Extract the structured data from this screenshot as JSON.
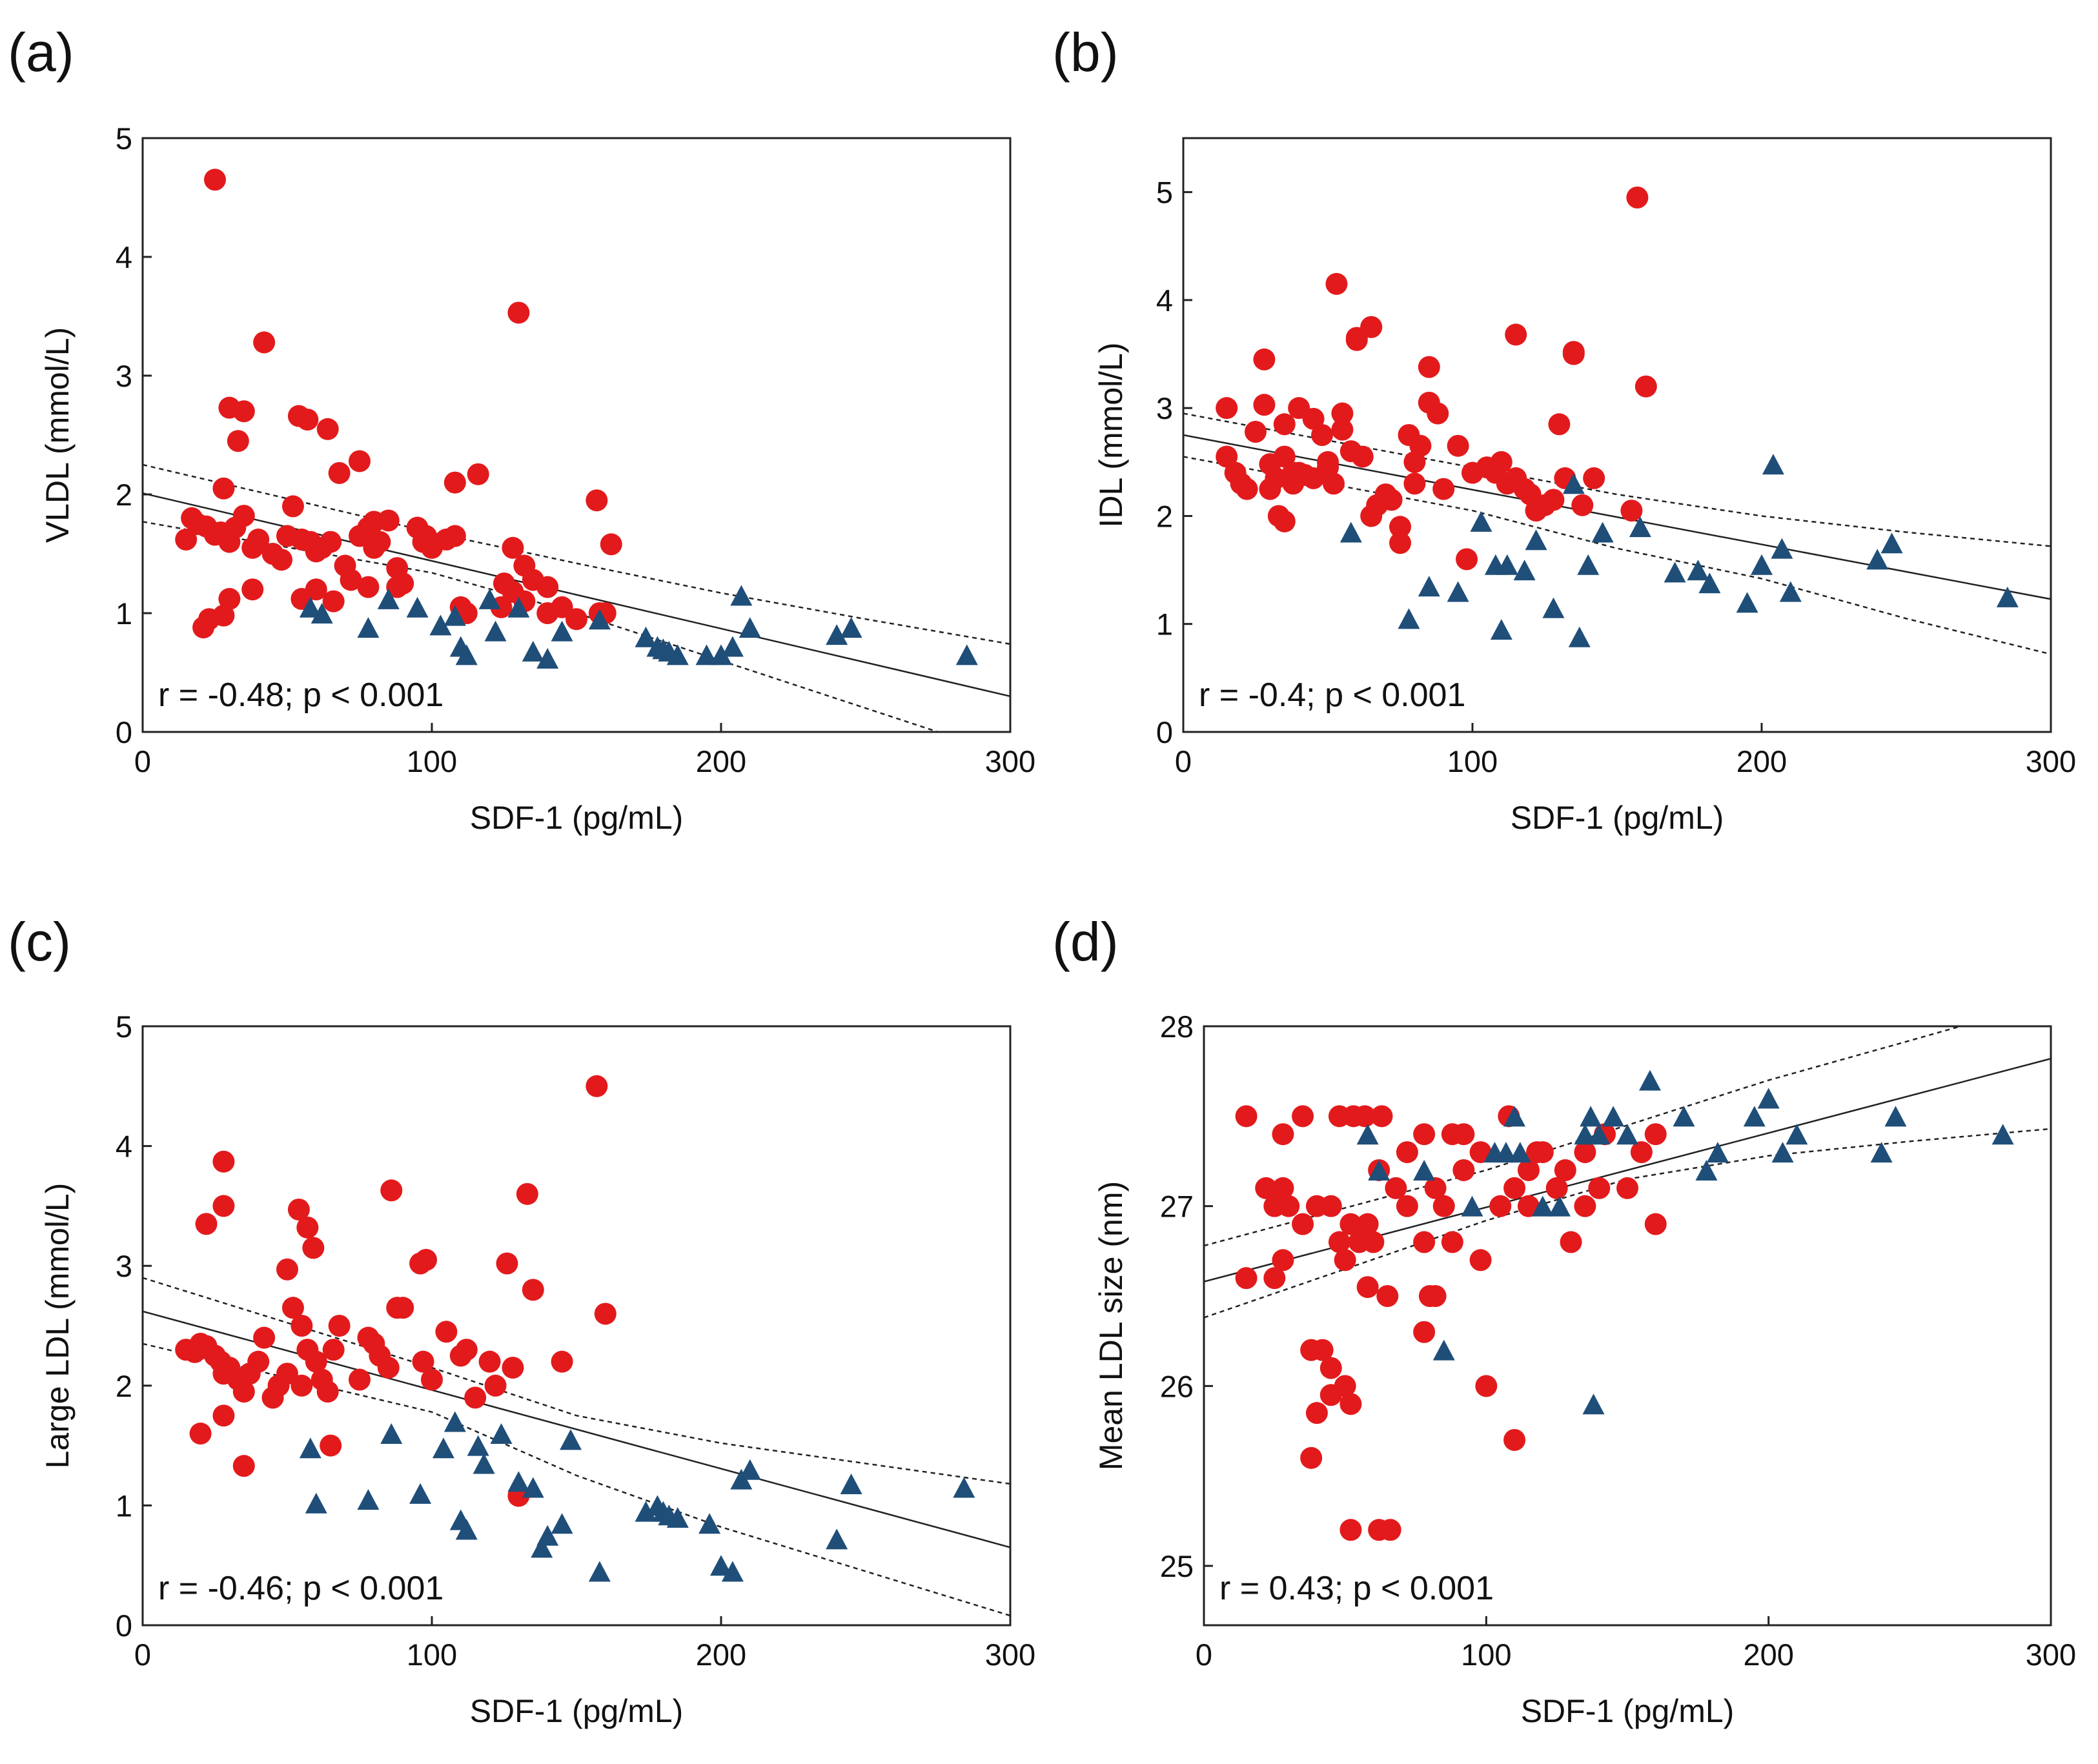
{
  "figure": {
    "marker_colors": {
      "red_circle": "#e31a1c",
      "blue_triangle": "#1f4e79"
    },
    "panels": [
      "a",
      "b",
      "c",
      "d"
    ]
  },
  "chart_data": [
    {
      "panel": "(a)",
      "type": "scatter",
      "xlabel": "SDF-1 (pg/mL)",
      "ylabel": "VLDL (mmol/L)",
      "xlim": [
        0,
        300
      ],
      "ylim": [
        0,
        5
      ],
      "xticks": [
        "0",
        "100",
        "200",
        "300"
      ],
      "yticks": [
        "0",
        "1",
        "2",
        "3",
        "4",
        "5"
      ],
      "annotation": "r = -0.48; p < 0.001",
      "fit": {
        "x": [
          0,
          300
        ],
        "y": [
          2.01,
          0.3
        ]
      },
      "ci_upper": {
        "x": [
          0,
          100,
          150,
          200,
          250,
          300
        ],
        "y": [
          2.25,
          1.68,
          1.42,
          1.17,
          0.95,
          0.74
        ]
      },
      "ci_lower": {
        "x": [
          0,
          100,
          150,
          200,
          250,
          275
        ],
        "y": [
          1.77,
          1.34,
          1.0,
          0.6,
          0.2,
          0.0
        ]
      },
      "series": [
        {
          "marker": "circle",
          "color": "#e31a1c",
          "x": [
            25,
            42,
            130,
            30,
            35,
            33,
            28,
            54,
            57,
            64,
            68,
            75,
            80,
            98,
            108,
            116,
            157,
            162,
            15,
            17,
            19,
            22,
            25,
            27,
            30,
            32,
            35,
            38,
            40,
            45,
            48,
            50,
            52,
            55,
            58,
            60,
            62,
            65,
            70,
            72,
            75,
            78,
            80,
            82,
            85,
            88,
            90,
            95,
            97,
            100,
            105,
            108,
            110,
            112,
            125,
            128,
            132,
            135,
            140,
            145,
            150,
            158,
            160,
            21,
            23,
            28,
            30,
            38,
            55,
            60,
            66,
            78,
            88,
            124,
            128,
            132,
            140
          ],
          "y": [
            4.65,
            3.28,
            3.53,
            2.73,
            2.7,
            2.45,
            2.05,
            2.66,
            2.63,
            2.55,
            2.18,
            2.28,
            1.77,
            1.65,
            2.1,
            2.17,
            1.95,
            1.58,
            1.62,
            1.8,
            1.75,
            1.73,
            1.66,
            1.68,
            1.6,
            1.72,
            1.82,
            1.55,
            1.62,
            1.5,
            1.45,
            1.65,
            1.9,
            1.62,
            1.6,
            1.52,
            1.55,
            1.6,
            1.4,
            1.28,
            1.65,
            1.72,
            1.55,
            1.6,
            1.78,
            1.38,
            1.25,
            1.72,
            1.6,
            1.55,
            1.62,
            1.65,
            1.05,
            1.0,
            1.25,
            1.55,
            1.4,
            1.28,
            1.22,
            1.05,
            0.95,
            1.0,
            1.0,
            0.88,
            0.95,
            0.98,
            1.12,
            1.2,
            1.12,
            1.2,
            1.1,
            1.22,
            1.22,
            1.05,
            1.18,
            1.1,
            1.0
          ]
        },
        {
          "marker": "triangle",
          "color": "#1f4e79",
          "x": [
            58,
            62,
            78,
            85,
            95,
            103,
            108,
            110,
            112,
            120,
            122,
            130,
            135,
            140,
            145,
            158,
            174,
            178,
            180,
            182,
            185,
            195,
            200,
            204,
            207,
            210,
            240,
            245,
            285
          ],
          "y": [
            1.05,
            1.0,
            0.88,
            1.12,
            1.05,
            0.9,
            0.98,
            0.72,
            0.65,
            1.12,
            0.85,
            1.05,
            0.68,
            0.62,
            0.85,
            0.95,
            0.8,
            0.72,
            0.7,
            0.68,
            0.65,
            0.65,
            0.65,
            0.72,
            1.15,
            0.88,
            0.82,
            0.88,
            0.65
          ]
        }
      ]
    },
    {
      "panel": "(b)",
      "type": "scatter",
      "xlabel": "SDF-1 (pg/mL)",
      "ylabel": "IDL (mmol/L)",
      "xlim": [
        0,
        300
      ],
      "ylim": [
        0,
        5.5
      ],
      "xticks": [
        "0",
        "100",
        "200",
        "300"
      ],
      "yticks": [
        "0",
        "1",
        "2",
        "3",
        "4",
        "5"
      ],
      "annotation": "r = -0.4; p < 0.001",
      "fit": {
        "x": [
          0,
          300
        ],
        "y": [
          2.75,
          1.23
        ]
      },
      "ci_upper": {
        "x": [
          0,
          100,
          150,
          200,
          250,
          300
        ],
        "y": [
          2.95,
          2.45,
          2.2,
          2.0,
          1.85,
          1.72
        ]
      },
      "ci_lower": {
        "x": [
          0,
          100,
          150,
          200,
          250,
          300
        ],
        "y": [
          2.55,
          2.05,
          1.7,
          1.42,
          1.05,
          0.72
        ]
      },
      "series": [
        {
          "marker": "circle",
          "color": "#e31a1c",
          "x": [
            15,
            15,
            20,
            25,
            28,
            28,
            30,
            32,
            35,
            35,
            38,
            40,
            42,
            45,
            48,
            50,
            52,
            55,
            55,
            58,
            60,
            62,
            65,
            67,
            70,
            72,
            75,
            78,
            80,
            82,
            85,
            88,
            90,
            95,
            98,
            100,
            105,
            108,
            110,
            112,
            115,
            118,
            120,
            122,
            125,
            128,
            130,
            132,
            135,
            138,
            142,
            155,
            157,
            160,
            53,
            60,
            65,
            85,
            115,
            135,
            18,
            22,
            30,
            33,
            35,
            38,
            40,
            45,
            50,
            65,
            75,
            80
          ],
          "y": [
            3.0,
            2.55,
            2.3,
            2.78,
            3.45,
            3.03,
            2.48,
            2.35,
            2.85,
            2.55,
            2.4,
            3.0,
            2.38,
            2.9,
            2.75,
            2.45,
            2.3,
            2.95,
            2.8,
            2.6,
            3.63,
            2.55,
            3.75,
            2.1,
            2.2,
            2.15,
            1.75,
            2.75,
            2.5,
            2.65,
            3.05,
            2.95,
            2.25,
            2.65,
            1.6,
            2.4,
            2.45,
            2.4,
            2.5,
            2.3,
            2.35,
            2.25,
            2.2,
            2.05,
            2.1,
            2.15,
            2.85,
            2.35,
            3.5,
            2.1,
            2.35,
            2.05,
            4.95,
            3.2,
            4.15,
            3.65,
            3.75,
            3.38,
            3.68,
            3.52,
            2.4,
            2.25,
            2.25,
            2.0,
            1.95,
            2.3,
            2.4,
            2.35,
            2.5,
            2.0,
            1.9,
            2.3
          ]
        },
        {
          "marker": "triangle",
          "color": "#1f4e79",
          "x": [
            58,
            78,
            85,
            95,
            103,
            108,
            110,
            112,
            118,
            122,
            128,
            135,
            137,
            140,
            145,
            158,
            170,
            178,
            182,
            195,
            200,
            204,
            207,
            210,
            240,
            245,
            285
          ],
          "y": [
            1.85,
            1.05,
            1.35,
            1.3,
            1.95,
            1.55,
            0.95,
            1.55,
            1.5,
            1.78,
            1.15,
            2.3,
            0.88,
            1.55,
            1.85,
            1.9,
            1.48,
            1.5,
            1.38,
            1.2,
            1.55,
            2.48,
            1.7,
            1.3,
            1.6,
            1.75,
            1.25
          ]
        }
      ]
    },
    {
      "panel": "(c)",
      "type": "scatter",
      "xlabel": "SDF-1 (pg/mL)",
      "ylabel": "Large LDL (mmol/L)",
      "xlim": [
        0,
        300
      ],
      "ylim": [
        0,
        5
      ],
      "xticks": [
        "0",
        "100",
        "200",
        "300"
      ],
      "yticks": [
        "0",
        "1",
        "2",
        "3",
        "4",
        "5"
      ],
      "annotation": "r = -0.46; p < 0.001",
      "fit": {
        "x": [
          0,
          300
        ],
        "y": [
          2.62,
          0.65
        ]
      },
      "ci_upper": {
        "x": [
          0,
          100,
          150,
          200,
          250,
          300
        ],
        "y": [
          2.9,
          2.15,
          1.75,
          1.52,
          1.35,
          1.18
        ]
      },
      "ci_lower": {
        "x": [
          0,
          100,
          150,
          200,
          250,
          300
        ],
        "y": [
          2.35,
          1.78,
          1.25,
          0.82,
          0.45,
          0.08
        ]
      },
      "series": [
        {
          "marker": "circle",
          "color": "#e31a1c",
          "x": [
            28,
            28,
            22,
            50,
            54,
            57,
            59,
            86,
            96,
            98,
            126,
            133,
            135,
            157,
            160,
            15,
            18,
            20,
            22,
            25,
            27,
            28,
            30,
            33,
            35,
            37,
            40,
            42,
            45,
            47,
            50,
            52,
            55,
            57,
            60,
            62,
            64,
            66,
            68,
            75,
            78,
            80,
            82,
            85,
            88,
            90,
            97,
            100,
            105,
            110,
            112,
            115,
            120,
            122,
            128,
            130,
            145,
            20,
            28,
            35,
            45,
            55,
            65
          ],
          "y": [
            3.87,
            3.5,
            3.35,
            2.97,
            3.47,
            3.32,
            3.15,
            3.63,
            3.02,
            3.05,
            3.02,
            3.6,
            2.8,
            4.5,
            2.6,
            2.3,
            2.28,
            2.35,
            2.33,
            2.25,
            2.2,
            2.1,
            2.15,
            2.05,
            1.95,
            2.1,
            2.2,
            2.4,
            1.9,
            2.0,
            2.1,
            2.65,
            2.5,
            2.3,
            2.2,
            2.05,
            1.95,
            2.3,
            2.5,
            2.05,
            2.4,
            2.35,
            2.25,
            2.15,
            2.65,
            2.65,
            2.2,
            2.05,
            2.45,
            2.25,
            2.3,
            1.9,
            2.2,
            2.0,
            2.15,
            1.08,
            2.2,
            1.6,
            1.75,
            1.33,
            1.9,
            2.0,
            1.5
          ]
        },
        {
          "marker": "triangle",
          "color": "#1f4e79",
          "x": [
            58,
            60,
            78,
            86,
            96,
            104,
            108,
            110,
            112,
            116,
            118,
            124,
            130,
            135,
            138,
            140,
            145,
            148,
            158,
            174,
            178,
            180,
            182,
            185,
            196,
            200,
            204,
            207,
            210,
            240,
            245,
            284
          ],
          "y": [
            1.48,
            1.02,
            1.05,
            1.6,
            1.1,
            1.48,
            1.7,
            0.88,
            0.8,
            1.5,
            1.35,
            1.6,
            1.2,
            1.15,
            0.65,
            0.75,
            0.85,
            1.55,
            0.45,
            0.95,
            1.0,
            0.95,
            0.92,
            0.9,
            0.85,
            0.5,
            0.45,
            1.22,
            1.3,
            0.72,
            1.18,
            1.15
          ]
        }
      ]
    },
    {
      "panel": "(d)",
      "type": "scatter",
      "xlabel": "SDF-1 (pg/mL)",
      "ylabel": "Mean LDL size (nm)",
      "xlim": [
        0,
        300
      ],
      "ylim": [
        24.67,
        28
      ],
      "xticks": [
        "0",
        "100",
        "200",
        "300"
      ],
      "yticks": [
        "25",
        "26",
        "27",
        "28"
      ],
      "annotation": "r = 0.43; p < 0.001",
      "fit": {
        "x": [
          0,
          300
        ],
        "y": [
          26.58,
          27.82
        ]
      },
      "ci_upper": {
        "x": [
          0,
          100,
          150,
          200,
          250,
          268
        ],
        "y": [
          26.78,
          27.2,
          27.45,
          27.7,
          27.92,
          28.0
        ]
      },
      "ci_lower": {
        "x": [
          0,
          100,
          150,
          200,
          250,
          300
        ],
        "y": [
          26.38,
          26.92,
          27.15,
          27.28,
          27.36,
          27.43
        ]
      },
      "series": [
        {
          "marker": "circle",
          "color": "#e31a1c",
          "x": [
            15,
            28,
            35,
            48,
            53,
            57,
            63,
            72,
            78,
            82,
            88,
            92,
            98,
            108,
            115,
            120,
            128,
            135,
            142,
            155,
            160,
            22,
            25,
            28,
            30,
            35,
            40,
            45,
            48,
            50,
            52,
            55,
            58,
            60,
            62,
            65,
            68,
            72,
            78,
            82,
            85,
            88,
            92,
            98,
            105,
            110,
            115,
            118,
            125,
            130,
            135,
            140,
            150,
            160,
            15,
            25,
            28,
            45,
            50,
            38,
            42,
            40,
            45,
            52,
            62,
            38,
            78,
            80,
            52,
            66,
            58,
            100,
            110
          ],
          "y": [
            27.5,
            27.4,
            27.5,
            27.5,
            27.5,
            27.5,
            27.5,
            27.3,
            27.4,
            27.1,
            27.4,
            27.4,
            27.3,
            27.5,
            27.2,
            27.3,
            27.2,
            27.3,
            27.4,
            27.3,
            27.4,
            27.1,
            27.0,
            27.1,
            27.0,
            26.9,
            27.0,
            27.0,
            26.8,
            26.7,
            26.9,
            26.8,
            26.9,
            26.8,
            27.2,
            26.5,
            27.1,
            27.0,
            26.8,
            26.5,
            27.0,
            26.8,
            27.2,
            26.7,
            27.0,
            27.1,
            27.0,
            27.3,
            27.1,
            26.8,
            27.0,
            27.1,
            27.1,
            26.9,
            26.6,
            26.6,
            26.7,
            26.1,
            26.0,
            26.2,
            26.2,
            25.85,
            25.95,
            25.9,
            25.2,
            25.6,
            26.3,
            26.5,
            25.2,
            25.2,
            26.55,
            26.0,
            25.7
          ]
        },
        {
          "marker": "triangle",
          "color": "#1f4e79",
          "x": [
            58,
            62,
            78,
            85,
            95,
            103,
            107,
            110,
            112,
            120,
            126,
            135,
            137,
            140,
            145,
            150,
            158,
            170,
            178,
            182,
            195,
            200,
            205,
            210,
            240,
            245,
            283,
            138
          ],
          "y": [
            27.4,
            27.2,
            27.2,
            26.2,
            27.0,
            27.3,
            27.3,
            27.5,
            27.3,
            27.0,
            27.0,
            27.4,
            27.5,
            27.4,
            27.5,
            27.4,
            27.7,
            27.5,
            27.2,
            27.3,
            27.5,
            27.6,
            27.3,
            27.4,
            27.3,
            27.5,
            27.4,
            25.9
          ]
        }
      ]
    }
  ]
}
